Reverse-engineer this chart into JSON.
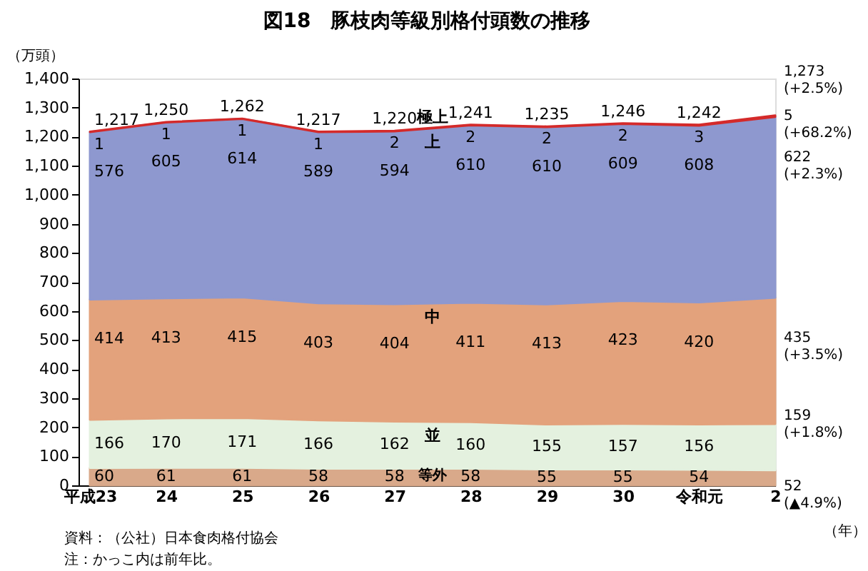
{
  "chart_data": {
    "type": "area",
    "stacked": true,
    "title": "図18　豚枝肉等級別格付頭数の推移",
    "ylabel": "（万頭）",
    "xlabel": "（年）",
    "categories": [
      "平成23",
      "24",
      "25",
      "26",
      "27",
      "28",
      "29",
      "30",
      "令和元",
      "2"
    ],
    "ylim": [
      0,
      1400
    ],
    "yticks": [
      0,
      100,
      200,
      300,
      400,
      500,
      600,
      700,
      800,
      900,
      {
        "value": 1000,
        "label": "1,000"
      },
      {
        "value": 1100,
        "label": "1,100"
      },
      {
        "value": 1200,
        "label": "1,200"
      },
      {
        "value": 1300,
        "label": "1,300"
      },
      {
        "value": 1400,
        "label": "1,400"
      }
    ],
    "series": [
      {
        "name": "等外",
        "color": "#d9a98a",
        "values": [
          60,
          61,
          61,
          58,
          58,
          58,
          55,
          55,
          54,
          52
        ],
        "value_labels": [
          "60",
          "61",
          "61",
          "58",
          "58",
          "58",
          "55",
          "55",
          "54",
          "52\n(▲4.9%)"
        ]
      },
      {
        "name": "並",
        "color": "#e4f1df",
        "values": [
          166,
          170,
          171,
          166,
          162,
          160,
          155,
          157,
          156,
          159
        ],
        "value_labels": [
          "166",
          "170",
          "171",
          "166",
          "162",
          "160",
          "155",
          "157",
          "156",
          "159\n(+1.8%)"
        ]
      },
      {
        "name": "中",
        "color": "#e3a27c",
        "values": [
          414,
          413,
          415,
          403,
          404,
          411,
          413,
          423,
          420,
          435
        ],
        "value_labels": [
          "414",
          "413",
          "415",
          "403",
          "404",
          "411",
          "413",
          "423",
          "420",
          "435\n(+3.5%)"
        ]
      },
      {
        "name": "上",
        "color": "#8e98cf",
        "values": [
          576,
          605,
          614,
          589,
          594,
          610,
          610,
          609,
          608,
          622
        ],
        "value_labels": [
          "576",
          "605",
          "614",
          "589",
          "594",
          "610",
          "610",
          "609",
          "608",
          "622\n(+2.3%)"
        ]
      },
      {
        "name": "極上",
        "color": "#d42a2a",
        "values": [
          1,
          1,
          1,
          1,
          2,
          2,
          2,
          2,
          3,
          5
        ],
        "value_labels": [
          "1",
          "1",
          "1",
          "1",
          "2",
          "2",
          "2",
          "2",
          "3",
          "5\n(+68.2%)"
        ]
      }
    ],
    "totals": [
      "1,217",
      "1,250",
      "1,262",
      "1,217",
      "1,220",
      "1,241",
      "1,235",
      "1,246",
      "1,242",
      "1,273\n(+2.5%)"
    ],
    "legend": false,
    "grid": false,
    "annotations": [
      "資料：（公社）日本食肉格付協会",
      "　注：かっこ内は前年比。"
    ]
  }
}
